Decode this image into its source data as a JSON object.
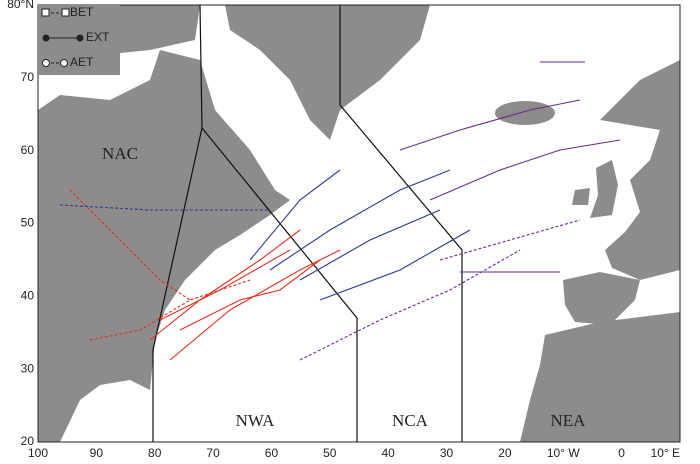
{
  "axes": {
    "y_labels": [
      "80°N",
      "70",
      "60",
      "50",
      "40",
      "30",
      "20"
    ],
    "x_labels": [
      "100",
      "90",
      "80",
      "70",
      "60",
      "50",
      "40",
      "30",
      "20",
      "10° W",
      "0",
      "10° E"
    ]
  },
  "legend": [
    "BET",
    "EXT",
    "AET"
  ],
  "regions": [
    "NAC",
    "NWA",
    "NCA",
    "NEA"
  ]
}
